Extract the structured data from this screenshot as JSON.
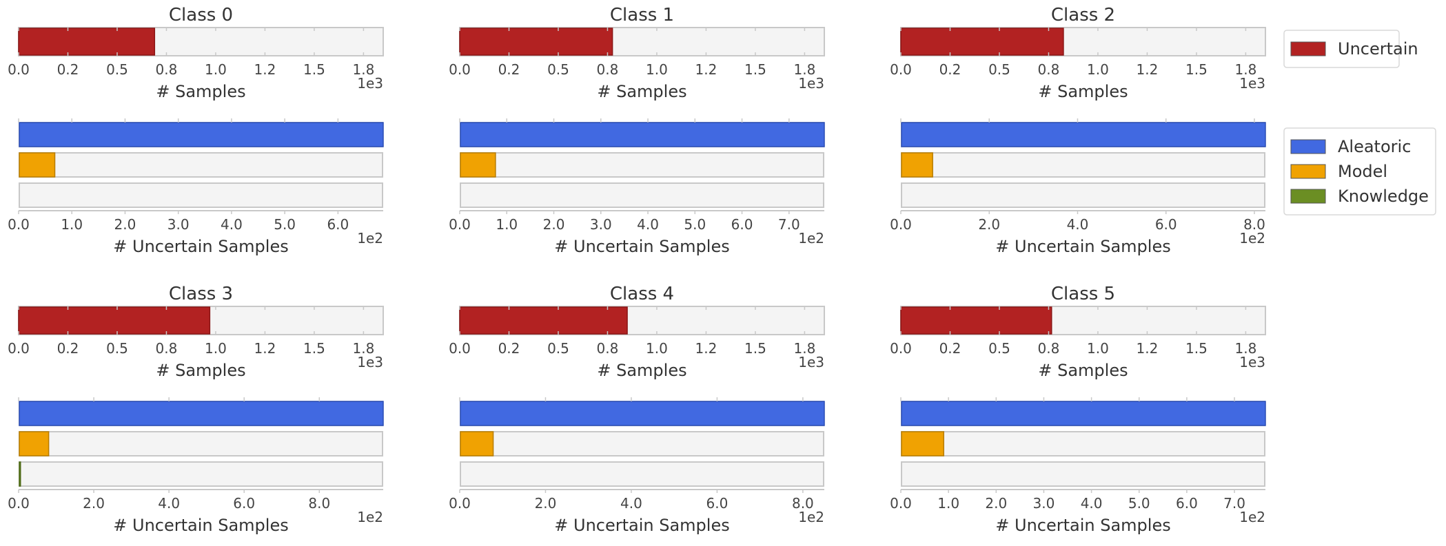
{
  "colors": {
    "uncertain": "#b22222",
    "aleatoric": "#4169e1",
    "model": "#f0a202",
    "knowledge": "#6b8e23",
    "track_fill": "#f4f4f4",
    "track_stroke": "#c8c8c8",
    "text": "#333333",
    "tick_text": "#444444"
  },
  "legend": {
    "top": [
      {
        "label": "Uncertain",
        "color": "#b22222"
      }
    ],
    "bottom": [
      {
        "label": "Aleatoric",
        "color": "#4169e1"
      },
      {
        "label": "Model",
        "color": "#f0a202"
      },
      {
        "label": "Knowledge",
        "color": "#6b8e23"
      }
    ]
  },
  "chart_data": [
    {
      "type": "bar",
      "orientation": "horizontal",
      "title": "Class 0",
      "samples": {
        "xlabel": "# Samples",
        "offset_label": "1e3",
        "xlim": [
          0,
          1.85
        ],
        "ticks": [
          0,
          0.25,
          0.5,
          0.75,
          1.0,
          1.25,
          1.5,
          1.75
        ],
        "tick_labels": [
          "0.0",
          "0.2",
          "0.5",
          "0.8",
          "1.0",
          "1.2",
          "1.5",
          "1.8"
        ],
        "series": [
          {
            "name": "Uncertain",
            "value": 0.69
          }
        ]
      },
      "uncertain": {
        "xlabel": "# Uncertain Samples",
        "offset_label": "1e2",
        "xlim": [
          0,
          6.85
        ],
        "ticks": [
          0,
          1,
          2,
          3,
          4,
          5,
          6
        ],
        "tick_labels": [
          "0.0",
          "1.0",
          "2.0",
          "3.0",
          "4.0",
          "5.0",
          "6.0"
        ],
        "series": [
          {
            "name": "Aleatoric",
            "value": 6.85
          },
          {
            "name": "Model",
            "value": 0.68
          },
          {
            "name": "Knowledge",
            "value": 0
          }
        ]
      }
    },
    {
      "type": "bar",
      "orientation": "horizontal",
      "title": "Class 1",
      "samples": {
        "xlabel": "# Samples",
        "offset_label": "1e3",
        "xlim": [
          0,
          1.85
        ],
        "ticks": [
          0,
          0.25,
          0.5,
          0.75,
          1.0,
          1.25,
          1.5,
          1.75
        ],
        "tick_labels": [
          "0.0",
          "0.2",
          "0.5",
          "0.8",
          "1.0",
          "1.2",
          "1.5",
          "1.8"
        ],
        "series": [
          {
            "name": "Uncertain",
            "value": 0.775
          }
        ]
      },
      "uncertain": {
        "xlabel": "# Uncertain Samples",
        "offset_label": "1e2",
        "xlim": [
          0,
          7.75
        ],
        "ticks": [
          0,
          1,
          2,
          3,
          4,
          5,
          6,
          7
        ],
        "tick_labels": [
          "0.0",
          "1.0",
          "2.0",
          "3.0",
          "4.0",
          "5.0",
          "6.0",
          "7.0"
        ],
        "series": [
          {
            "name": "Aleatoric",
            "value": 7.75
          },
          {
            "name": "Model",
            "value": 0.76
          },
          {
            "name": "Knowledge",
            "value": 0
          }
        ]
      }
    },
    {
      "type": "bar",
      "orientation": "horizontal",
      "title": "Class 2",
      "samples": {
        "xlabel": "# Samples",
        "offset_label": "1e3",
        "xlim": [
          0,
          1.85
        ],
        "ticks": [
          0,
          0.25,
          0.5,
          0.75,
          1.0,
          1.25,
          1.5,
          1.75
        ],
        "tick_labels": [
          "0.0",
          "0.2",
          "0.5",
          "0.8",
          "1.0",
          "1.2",
          "1.5",
          "1.8"
        ],
        "series": [
          {
            "name": "Uncertain",
            "value": 0.825
          }
        ]
      },
      "uncertain": {
        "xlabel": "# Uncertain Samples",
        "offset_label": "1e2",
        "xlim": [
          0,
          8.25
        ],
        "ticks": [
          0,
          2,
          4,
          6,
          8
        ],
        "tick_labels": [
          "0.0",
          "2.0",
          "4.0",
          "6.0",
          "8.0"
        ],
        "series": [
          {
            "name": "Aleatoric",
            "value": 8.25
          },
          {
            "name": "Model",
            "value": 0.72
          },
          {
            "name": "Knowledge",
            "value": 0
          }
        ]
      }
    },
    {
      "type": "bar",
      "orientation": "horizontal",
      "title": "Class 3",
      "samples": {
        "xlabel": "# Samples",
        "offset_label": "1e3",
        "xlim": [
          0,
          1.85
        ],
        "ticks": [
          0,
          0.25,
          0.5,
          0.75,
          1.0,
          1.25,
          1.5,
          1.75
        ],
        "tick_labels": [
          "0.0",
          "0.2",
          "0.5",
          "0.8",
          "1.0",
          "1.2",
          "1.5",
          "1.8"
        ],
        "series": [
          {
            "name": "Uncertain",
            "value": 0.97
          }
        ]
      },
      "uncertain": {
        "xlabel": "# Uncertain Samples",
        "offset_label": "1e2",
        "xlim": [
          0,
          9.7
        ],
        "ticks": [
          0,
          2,
          4,
          6,
          8
        ],
        "tick_labels": [
          "0.0",
          "2.0",
          "4.0",
          "6.0",
          "8.0"
        ],
        "series": [
          {
            "name": "Aleatoric",
            "value": 9.7
          },
          {
            "name": "Model",
            "value": 0.8
          },
          {
            "name": "Knowledge",
            "value": 0.05
          }
        ]
      }
    },
    {
      "type": "bar",
      "orientation": "horizontal",
      "title": "Class 4",
      "samples": {
        "xlabel": "# Samples",
        "offset_label": "1e3",
        "xlim": [
          0,
          1.85
        ],
        "ticks": [
          0,
          0.25,
          0.5,
          0.75,
          1.0,
          1.25,
          1.5,
          1.75
        ],
        "tick_labels": [
          "0.0",
          "0.2",
          "0.5",
          "0.8",
          "1.0",
          "1.2",
          "1.5",
          "1.8"
        ],
        "series": [
          {
            "name": "Uncertain",
            "value": 0.85
          }
        ]
      },
      "uncertain": {
        "xlabel": "# Uncertain Samples",
        "offset_label": "1e2",
        "xlim": [
          0,
          8.5
        ],
        "ticks": [
          0,
          2,
          4,
          6,
          8
        ],
        "tick_labels": [
          "0.0",
          "2.0",
          "4.0",
          "6.0",
          "8.0"
        ],
        "series": [
          {
            "name": "Aleatoric",
            "value": 8.5
          },
          {
            "name": "Model",
            "value": 0.78
          },
          {
            "name": "Knowledge",
            "value": 0
          }
        ]
      }
    },
    {
      "type": "bar",
      "orientation": "horizontal",
      "title": "Class 5",
      "samples": {
        "xlabel": "# Samples",
        "offset_label": "1e3",
        "xlim": [
          0,
          1.85
        ],
        "ticks": [
          0,
          0.25,
          0.5,
          0.75,
          1.0,
          1.25,
          1.5,
          1.75
        ],
        "tick_labels": [
          "0.0",
          "0.2",
          "0.5",
          "0.8",
          "1.0",
          "1.2",
          "1.5",
          "1.8"
        ],
        "series": [
          {
            "name": "Uncertain",
            "value": 0.765
          }
        ]
      },
      "uncertain": {
        "xlabel": "# Uncertain Samples",
        "offset_label": "1e2",
        "xlim": [
          0,
          7.65
        ],
        "ticks": [
          0,
          1,
          2,
          3,
          4,
          5,
          6,
          7
        ],
        "tick_labels": [
          "0.0",
          "1.0",
          "2.0",
          "3.0",
          "4.0",
          "5.0",
          "6.0",
          "7.0"
        ],
        "series": [
          {
            "name": "Aleatoric",
            "value": 7.65
          },
          {
            "name": "Model",
            "value": 0.9
          },
          {
            "name": "Knowledge",
            "value": 0
          }
        ]
      }
    }
  ]
}
